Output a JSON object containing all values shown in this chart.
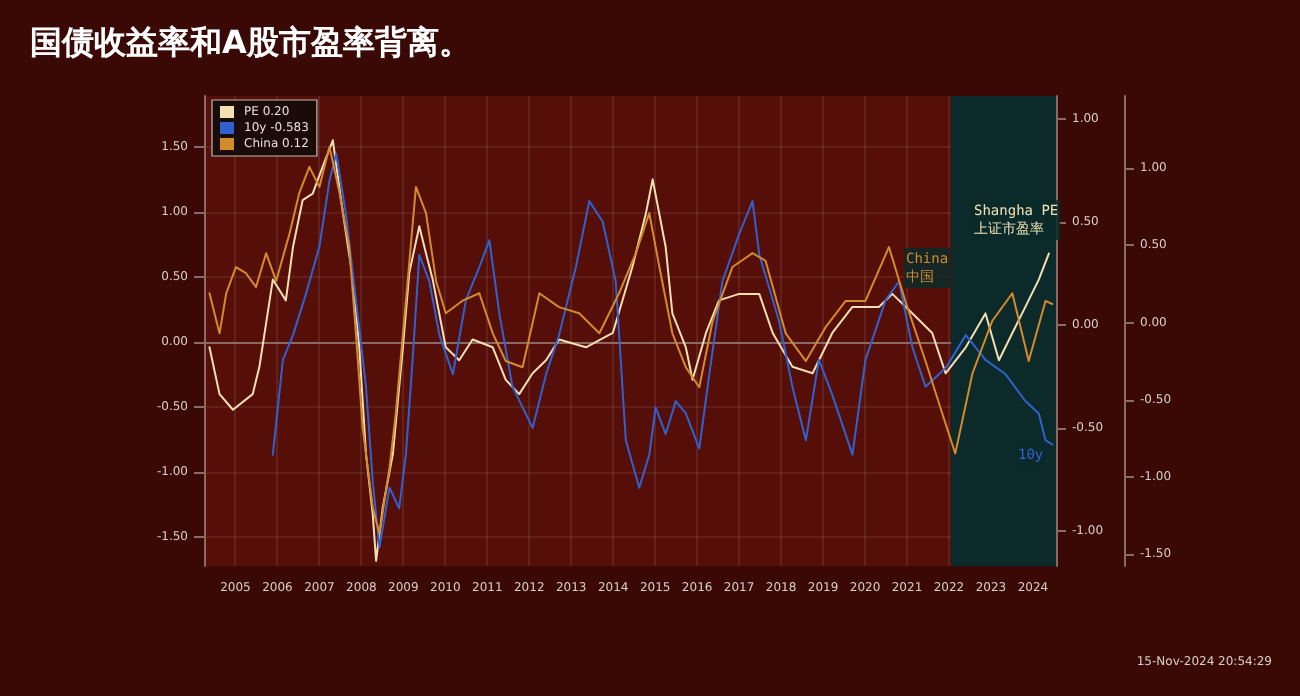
{
  "chart_data": {
    "type": "line",
    "title": "国债收益率和A股市盈率背离。",
    "series": [
      {
        "name": "PE 0.20",
        "color": "#f2e0b4",
        "x": [
          2004.88,
          2005.12,
          2005.44,
          2005.91,
          2006.07,
          2006.39,
          2006.7,
          2006.87,
          2007.1,
          2007.34,
          2007.58,
          2007.82,
          2008.06,
          2008.3,
          2008.45,
          2008.61,
          2008.77,
          2008.85,
          2009.01,
          2009.25,
          2009.49,
          2009.64,
          2009.88,
          2010.04,
          2010.2,
          2010.51,
          2010.83,
          2011.15,
          2011.63,
          2011.94,
          2012.26,
          2012.58,
          2012.9,
          2013.21,
          2013.85,
          2014.49,
          2014.96,
          2015.28,
          2015.44,
          2015.75,
          2015.91,
          2016.23,
          2016.39,
          2016.71,
          2017.02,
          2017.5,
          2017.98,
          2018.3,
          2018.77,
          2019.25,
          2019.72,
          2020.2,
          2020.83,
          2021.15,
          2021.63,
          2022.1,
          2022.42,
          2022.9,
          2023.37,
          2023.69,
          2024.01,
          2024.32,
          2024.64,
          2024.88
        ],
        "values": [
          -0.04,
          -0.4,
          -0.52,
          -0.4,
          -0.19,
          0.48,
          0.32,
          0.73,
          1.09,
          1.14,
          1.35,
          1.55,
          0.99,
          0.48,
          -0.04,
          -0.86,
          -1.32,
          -1.68,
          -1.27,
          -0.86,
          -0.04,
          0.53,
          0.89,
          0.68,
          0.48,
          -0.04,
          -0.14,
          0.02,
          -0.04,
          -0.29,
          -0.4,
          -0.24,
          -0.14,
          0.02,
          -0.04,
          0.07,
          0.58,
          0.99,
          1.25,
          0.73,
          0.22,
          -0.04,
          -0.29,
          0.07,
          0.32,
          0.37,
          0.37,
          0.07,
          -0.19,
          -0.24,
          0.07,
          0.27,
          0.27,
          0.37,
          0.22,
          0.07,
          -0.24,
          -0.04,
          0.22,
          -0.14,
          0.07,
          0.27,
          0.48,
          0.68
        ]
      },
      {
        "name": "10y -0.583",
        "color": "#2f62d0",
        "axis": "y2",
        "x": [
          2006.39,
          2006.63,
          2006.87,
          2007.18,
          2007.5,
          2007.74,
          2007.9,
          2008.13,
          2008.37,
          2008.61,
          2008.77,
          2008.93,
          2009.17,
          2009.4,
          2009.56,
          2009.72,
          2009.88,
          2010.12,
          2010.36,
          2010.68,
          2010.99,
          2011.31,
          2011.55,
          2011.79,
          2012.1,
          2012.58,
          2012.9,
          2013.21,
          2013.61,
          2013.93,
          2014.25,
          2014.56,
          2014.8,
          2015.12,
          2015.36,
          2015.51,
          2015.75,
          2015.99,
          2016.23,
          2016.55,
          2016.79,
          2017.1,
          2017.5,
          2017.82,
          2017.98,
          2018.45,
          2018.77,
          2019.09,
          2019.4,
          2019.72,
          2020.2,
          2020.51,
          2020.99,
          2021.31,
          2021.63,
          2021.94,
          2022.42,
          2022.9,
          2023.37,
          2023.85,
          2024.32,
          2024.64,
          2024.8,
          2024.96
        ],
        "values": [
          -0.63,
          -0.17,
          -0.05,
          0.15,
          0.38,
          0.7,
          0.83,
          0.54,
          0.12,
          -0.3,
          -0.76,
          -1.08,
          -0.79,
          -0.89,
          -0.63,
          -0.17,
          0.34,
          0.21,
          -0.05,
          -0.24,
          0.12,
          0.28,
          0.41,
          0.05,
          -0.3,
          -0.5,
          -0.24,
          -0.05,
          0.28,
          0.6,
          0.5,
          0.21,
          -0.56,
          -0.79,
          -0.63,
          -0.4,
          -0.53,
          -0.37,
          -0.43,
          -0.6,
          -0.24,
          0.21,
          0.44,
          0.6,
          0.34,
          0.02,
          -0.3,
          -0.56,
          -0.17,
          -0.34,
          -0.63,
          -0.17,
          0.12,
          0.21,
          -0.11,
          -0.3,
          -0.21,
          -0.05,
          -0.17,
          -0.24,
          -0.37,
          -0.43,
          -0.56,
          -0.58
        ]
      },
      {
        "name": "China 0.12",
        "color": "#d38b2c",
        "axis": "y3",
        "x": [
          2004.88,
          2005.12,
          2005.28,
          2005.51,
          2005.75,
          2005.99,
          2006.23,
          2006.47,
          2006.79,
          2007.02,
          2007.26,
          2007.5,
          2007.74,
          2007.98,
          2008.21,
          2008.37,
          2008.53,
          2008.77,
          2008.93,
          2009.17,
          2009.32,
          2009.56,
          2009.8,
          2010.04,
          2010.28,
          2010.51,
          2010.9,
          2011.31,
          2011.63,
          2011.94,
          2012.34,
          2012.74,
          2013.21,
          2013.69,
          2014.17,
          2014.64,
          2015.04,
          2015.36,
          2015.6,
          2015.91,
          2016.23,
          2016.55,
          2016.87,
          2017.34,
          2017.82,
          2018.13,
          2018.61,
          2019.09,
          2019.56,
          2020.04,
          2020.51,
          2021.07,
          2021.46,
          2021.94,
          2022.34,
          2022.65,
          2023.06,
          2023.53,
          2024.01,
          2024.4,
          2024.8,
          2024.96
        ],
        "values": [
          0.19,
          -0.07,
          0.19,
          0.36,
          0.32,
          0.23,
          0.45,
          0.27,
          0.58,
          0.84,
          1.01,
          0.88,
          1.14,
          0.84,
          0.49,
          -0.07,
          -0.68,
          -1.2,
          -1.37,
          -0.94,
          -0.59,
          0.14,
          0.88,
          0.71,
          0.27,
          0.06,
          0.14,
          0.19,
          -0.07,
          -0.25,
          -0.29,
          0.19,
          0.1,
          0.06,
          -0.07,
          0.19,
          0.45,
          0.71,
          0.36,
          -0.07,
          -0.29,
          -0.42,
          0.01,
          0.36,
          0.45,
          0.4,
          -0.07,
          -0.25,
          -0.03,
          0.14,
          0.14,
          0.49,
          0.14,
          -0.25,
          -0.59,
          -0.85,
          -0.33,
          0.01,
          0.19,
          -0.25,
          0.14,
          0.12
        ]
      }
    ],
    "xlim": [
      2004.75,
      2025.05
    ],
    "xticks": [
      {
        "value": 2005.5,
        "label": "2005"
      },
      {
        "value": 2006.5,
        "label": "2006"
      },
      {
        "value": 2007.5,
        "label": "2007"
      },
      {
        "value": 2008.5,
        "label": "2008"
      },
      {
        "value": 2009.5,
        "label": "2009"
      },
      {
        "value": 2010.5,
        "label": "2010"
      },
      {
        "value": 2011.5,
        "label": "2011"
      },
      {
        "value": 2012.5,
        "label": "2012"
      },
      {
        "value": 2013.5,
        "label": "2013"
      },
      {
        "value": 2014.5,
        "label": "2014"
      },
      {
        "value": 2015.5,
        "label": "2015"
      },
      {
        "value": 2016.5,
        "label": "2016"
      },
      {
        "value": 2017.5,
        "label": "2017"
      },
      {
        "value": 2018.5,
        "label": "2018"
      },
      {
        "value": 2019.5,
        "label": "2019"
      },
      {
        "value": 2020.5,
        "label": "2020"
      },
      {
        "value": 2021.5,
        "label": "2021"
      },
      {
        "value": 2022.5,
        "label": "2022"
      },
      {
        "value": 2023.5,
        "label": "2023"
      },
      {
        "value": 2024.5,
        "label": "2024"
      }
    ],
    "ylim": [
      -1.72,
      1.89
    ],
    "yticks": [
      {
        "value": -1.5,
        "label": "-1.50"
      },
      {
        "value": -1,
        "label": "-1.00"
      },
      {
        "value": -0.5,
        "label": "-0.50"
      },
      {
        "value": 0,
        "label": "0.00"
      },
      {
        "value": 0.5,
        "label": "0.50"
      },
      {
        "value": 1,
        "label": "1.00"
      },
      {
        "value": 1.5,
        "label": "1.50"
      }
    ],
    "y2lim": [
      -1.17,
      1.11
    ],
    "y2ticks": [
      {
        "value": -1,
        "label": "-1.00"
      },
      {
        "value": -0.5,
        "label": "-0.50"
      },
      {
        "value": 0,
        "label": "0.00"
      },
      {
        "value": 0.5,
        "label": "0.50"
      },
      {
        "value": 1,
        "label": "1.00"
      }
    ],
    "y3lim": [
      -1.58,
      1.47
    ],
    "y3ticks": [
      {
        "value": -1.5,
        "label": "-1.50"
      },
      {
        "value": -1,
        "label": "-1.00"
      },
      {
        "value": -0.5,
        "label": "-0.50"
      },
      {
        "value": 0,
        "label": "0.00"
      },
      {
        "value": 0.5,
        "label": "0.50"
      },
      {
        "value": 1,
        "label": "1.00"
      }
    ],
    "bands": [
      {
        "axis": "x",
        "from": 2022.55,
        "to": 2025.05,
        "color": "#0b2a29"
      }
    ],
    "annotations": [
      "Shangha PE\n上证市盈率",
      "China\n中国",
      "10y",
      "15-Nov-2024 20:54:29"
    ],
    "grid": true,
    "legend": "top left",
    "marker": "none",
    "line_style": "solid"
  }
}
